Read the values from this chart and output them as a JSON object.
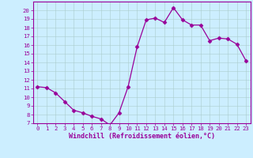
{
  "x": [
    0,
    1,
    2,
    3,
    4,
    5,
    6,
    7,
    8,
    9,
    10,
    11,
    12,
    13,
    14,
    15,
    16,
    17,
    18,
    19,
    20,
    21,
    22,
    23
  ],
  "y": [
    11.2,
    11.1,
    10.5,
    9.5,
    8.5,
    8.2,
    7.8,
    7.5,
    6.8,
    8.2,
    11.2,
    15.8,
    18.9,
    19.1,
    18.6,
    20.3,
    18.9,
    18.3,
    18.3,
    16.5,
    16.8,
    16.7,
    16.1,
    14.2
  ],
  "line_color": "#990099",
  "marker": "D",
  "marker_size": 2.5,
  "bg_color": "#cceeff",
  "grid_color": "#aacccc",
  "xlabel": "Windchill (Refroidissement éolien,°C)",
  "ylim": [
    7,
    21
  ],
  "xlim": [
    -0.5,
    23.5
  ],
  "yticks": [
    7,
    8,
    9,
    10,
    11,
    12,
    13,
    14,
    15,
    16,
    17,
    18,
    19,
    20
  ],
  "xticks": [
    0,
    1,
    2,
    3,
    4,
    5,
    6,
    7,
    8,
    9,
    10,
    11,
    12,
    13,
    14,
    15,
    16,
    17,
    18,
    19,
    20,
    21,
    22,
    23
  ],
  "xlabel_color": "#990099",
  "tick_color": "#990099",
  "axis_color": "#990099",
  "label_fontsize": 6.0,
  "tick_fontsize": 5.2
}
